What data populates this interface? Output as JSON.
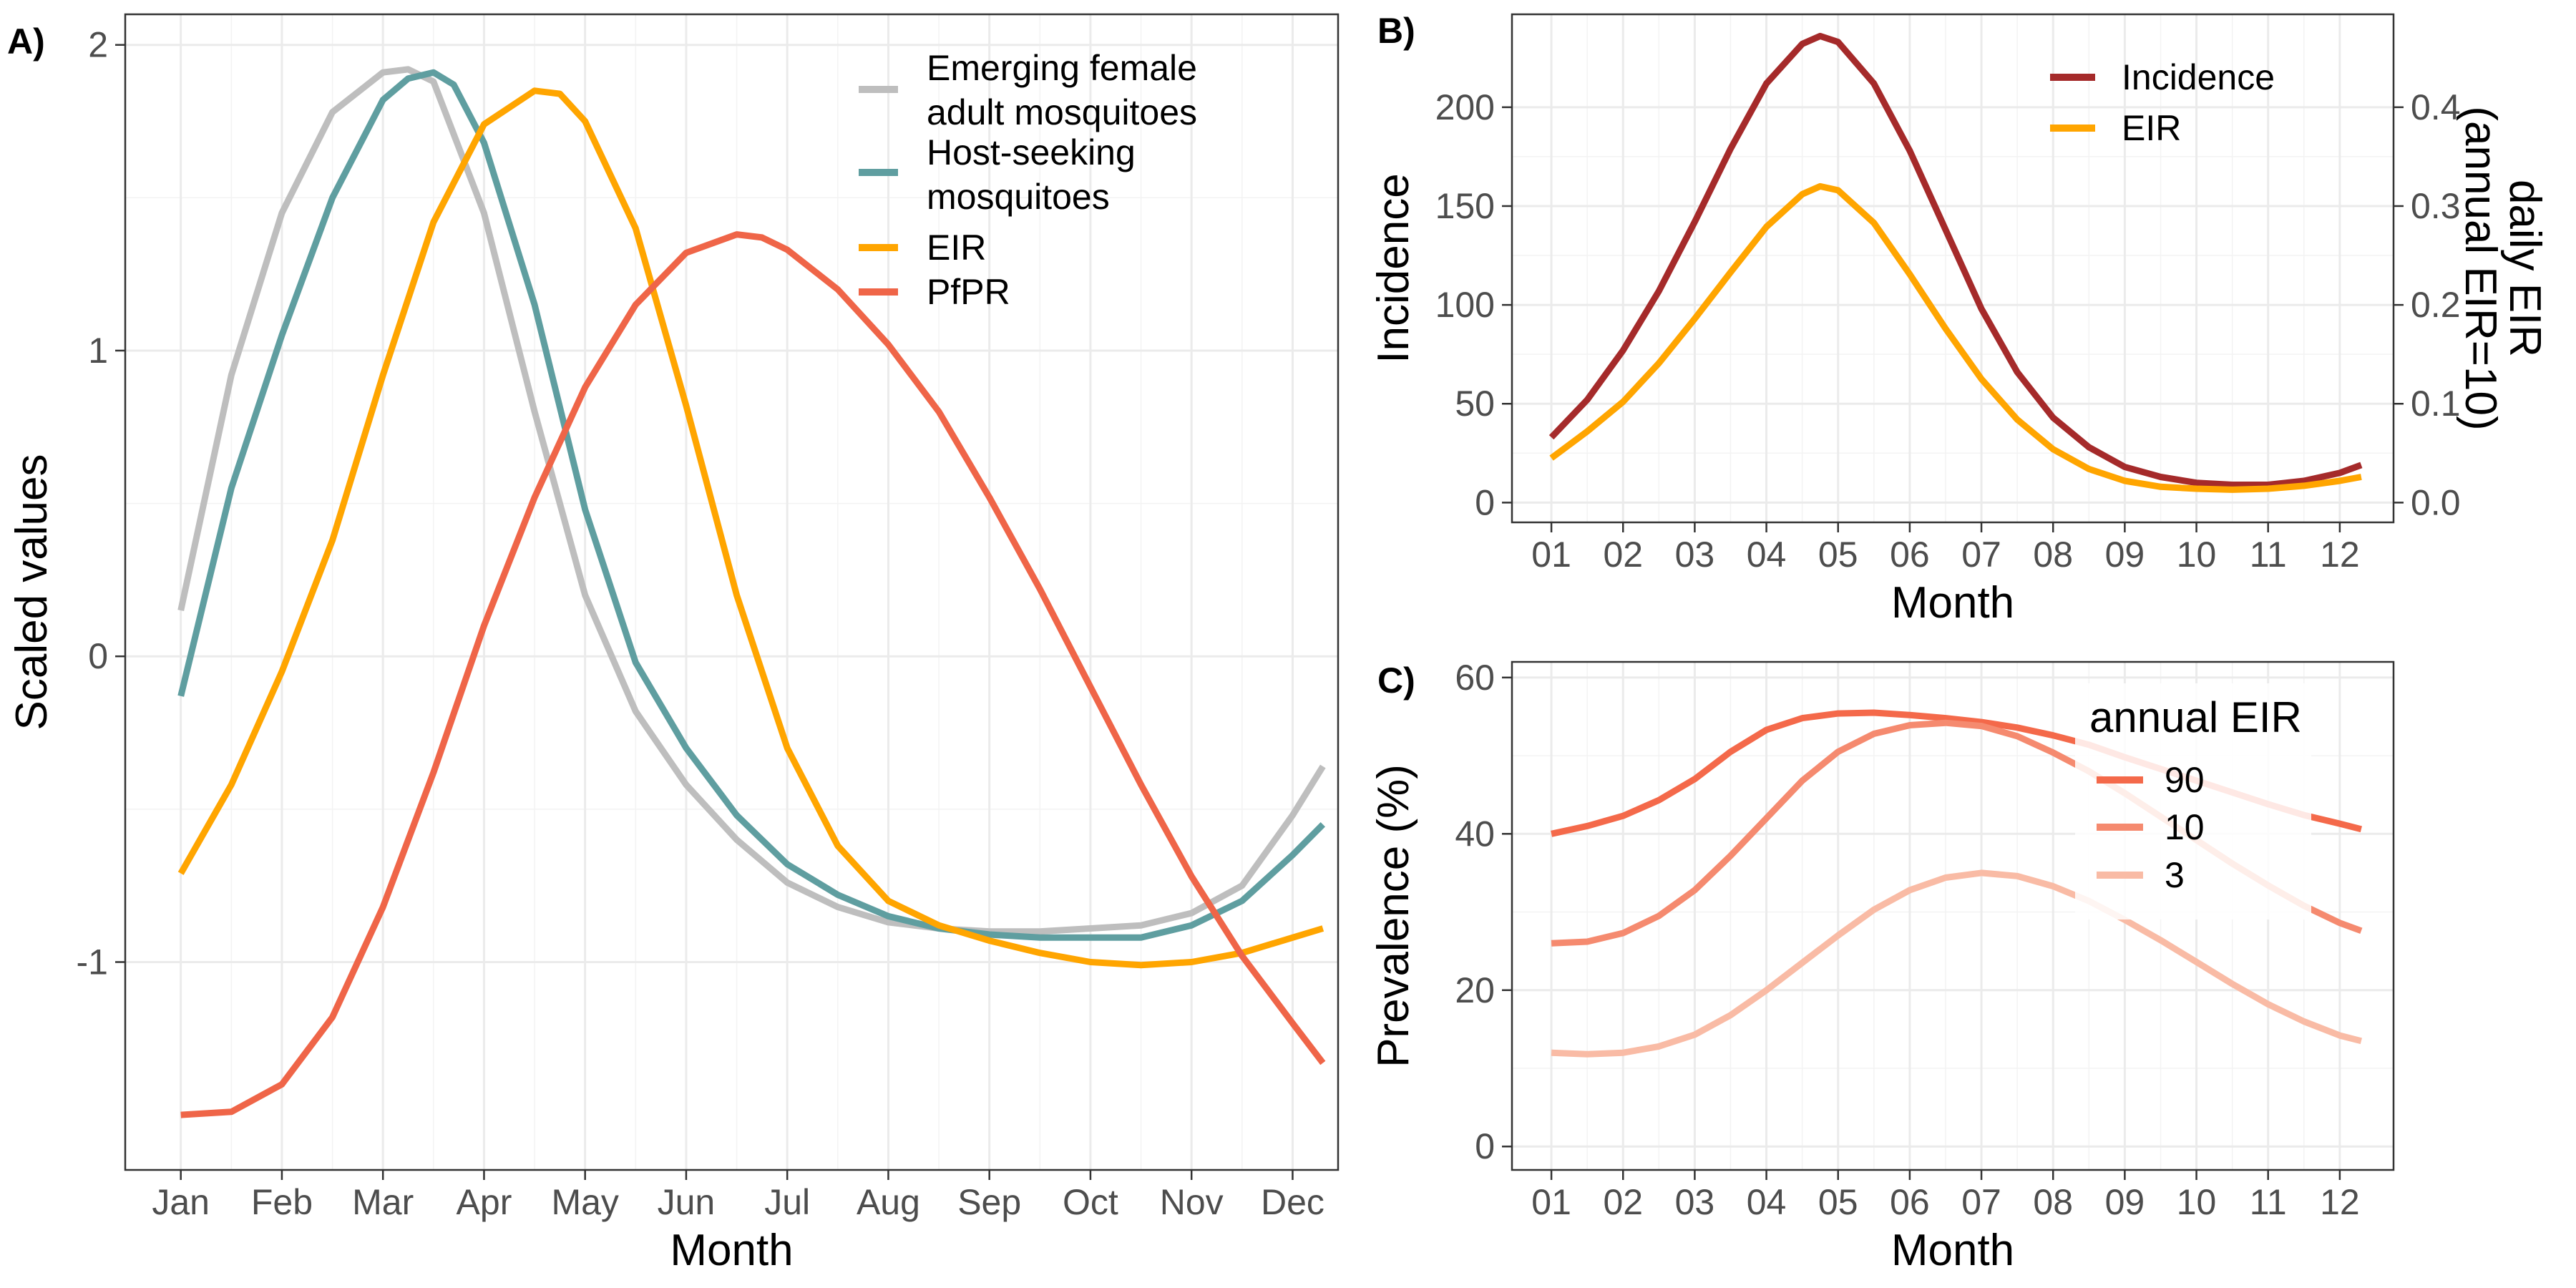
{
  "chart_data": [
    {
      "panel": "A)",
      "type": "line",
      "xlabel": "Month",
      "ylabel": "Scaled values",
      "x_ticks": [
        "Jan",
        "Feb",
        "Mar",
        "Apr",
        "May",
        "Jun",
        "Jul",
        "Aug",
        "Sep",
        "Oct",
        "Nov",
        "Dec"
      ],
      "y_ticks": [
        -1,
        0,
        1,
        2
      ],
      "ylim": [
        -1.68,
        2.1
      ],
      "xlim": [
        0.45,
        12.45
      ],
      "legend": "top-right",
      "series": [
        {
          "name": "Emerging female adult mosquitoes",
          "color": "#bebebe",
          "x": [
            1,
            1.5,
            2,
            2.5,
            3,
            3.25,
            3.5,
            4,
            4.5,
            5,
            5.5,
            6,
            6.5,
            7,
            7.5,
            8,
            8.5,
            9,
            9.5,
            10,
            10.5,
            11,
            11.5,
            12,
            12.3
          ],
          "y": [
            0.15,
            0.92,
            1.45,
            1.78,
            1.91,
            1.92,
            1.88,
            1.45,
            0.8,
            0.2,
            -0.18,
            -0.42,
            -0.6,
            -0.74,
            -0.82,
            -0.87,
            -0.89,
            -0.9,
            -0.9,
            -0.89,
            -0.88,
            -0.84,
            -0.75,
            -0.52,
            -0.36
          ]
        },
        {
          "name": "Host-seeking mosquitoes",
          "color": "#5f9ea0",
          "x": [
            1,
            1.5,
            2,
            2.5,
            3,
            3.25,
            3.5,
            3.7,
            4,
            4.5,
            5,
            5.5,
            6,
            6.5,
            7,
            7.5,
            8,
            8.5,
            9,
            9.5,
            10,
            10.5,
            11,
            11.5,
            12,
            12.3
          ],
          "y": [
            -0.13,
            0.55,
            1.05,
            1.5,
            1.82,
            1.89,
            1.91,
            1.87,
            1.68,
            1.15,
            0.48,
            -0.02,
            -0.3,
            -0.52,
            -0.68,
            -0.78,
            -0.85,
            -0.89,
            -0.91,
            -0.92,
            -0.92,
            -0.92,
            -0.88,
            -0.8,
            -0.65,
            -0.55
          ]
        },
        {
          "name": "EIR",
          "color": "#ffa500",
          "x": [
            1,
            1.5,
            2,
            2.5,
            3,
            3.5,
            4,
            4.5,
            4.75,
            5,
            5.5,
            6,
            6.5,
            7,
            7.5,
            8,
            8.5,
            9,
            9.5,
            10,
            10.5,
            11,
            11.5,
            12,
            12.3
          ],
          "y": [
            -0.71,
            -0.42,
            -0.05,
            0.38,
            0.92,
            1.42,
            1.74,
            1.85,
            1.84,
            1.75,
            1.4,
            0.82,
            0.2,
            -0.3,
            -0.62,
            -0.8,
            -0.88,
            -0.93,
            -0.97,
            -1.0,
            -1.01,
            -1.0,
            -0.97,
            -0.92,
            -0.89
          ]
        },
        {
          "name": "PfPR",
          "color": "#ef6548",
          "x": [
            1,
            1.5,
            2,
            2.5,
            3,
            3.5,
            4,
            4.5,
            5,
            5.5,
            6,
            6.5,
            6.75,
            7,
            7.5,
            8,
            8.5,
            9,
            9.5,
            10,
            10.5,
            11,
            11.5,
            12,
            12.3
          ],
          "y": [
            -1.5,
            -1.49,
            -1.4,
            -1.18,
            -0.82,
            -0.38,
            0.1,
            0.52,
            0.88,
            1.15,
            1.32,
            1.38,
            1.37,
            1.33,
            1.2,
            1.02,
            0.8,
            0.52,
            0.22,
            -0.1,
            -0.42,
            -0.72,
            -0.98,
            -1.2,
            -1.33
          ]
        }
      ]
    },
    {
      "panel": "B)",
      "type": "line",
      "xlabel": "Month",
      "ylabel": "Incidence",
      "ylabel_right": "daily EIR\n(annual EIR=10)",
      "x_ticks": [
        "01",
        "02",
        "03",
        "04",
        "05",
        "06",
        "07",
        "08",
        "09",
        "10",
        "11",
        "12"
      ],
      "y_ticks": [
        0,
        50,
        100,
        150,
        200
      ],
      "y_ticks_right": [
        "0.0",
        "0.1",
        "0.2",
        "0.3",
        "0.4"
      ],
      "ylim": [
        -10,
        247
      ],
      "right_axis_scale": 500,
      "legend": "top-right",
      "series": [
        {
          "name": "Incidence",
          "color": "#a52a2a",
          "x": [
            1,
            1.5,
            2,
            2.5,
            3,
            3.5,
            4,
            4.5,
            4.75,
            5,
            5.5,
            6,
            6.5,
            7,
            7.5,
            8,
            8.5,
            9,
            9.5,
            10,
            10.5,
            11,
            11.5,
            12,
            12.3
          ],
          "y": [
            33,
            52,
            77,
            107,
            142,
            179,
            212,
            232,
            236,
            233,
            212,
            178,
            138,
            98,
            66,
            43,
            28,
            18,
            13,
            10,
            9,
            9,
            11,
            15,
            19
          ]
        },
        {
          "name": "EIR",
          "color": "#ffa500",
          "x": [
            1,
            1.5,
            2,
            2.5,
            3,
            3.5,
            4,
            4.5,
            4.75,
            5,
            5.5,
            6,
            6.5,
            7,
            7.5,
            8,
            8.5,
            9,
            9.5,
            10,
            10.5,
            11,
            11.5,
            12,
            12.3
          ],
          "y": [
            0.045,
            0.072,
            0.102,
            0.141,
            0.186,
            0.233,
            0.279,
            0.312,
            0.32,
            0.316,
            0.283,
            0.231,
            0.176,
            0.125,
            0.084,
            0.054,
            0.034,
            0.022,
            0.016,
            0.014,
            0.013,
            0.014,
            0.017,
            0.022,
            0.026
          ]
        }
      ]
    },
    {
      "panel": "C)",
      "type": "line",
      "xlabel": "Month",
      "ylabel": "Prevalence (%)",
      "x_ticks": [
        "01",
        "02",
        "03",
        "04",
        "05",
        "06",
        "07",
        "08",
        "09",
        "10",
        "11",
        "12"
      ],
      "y_ticks": [
        0,
        20,
        40,
        60
      ],
      "ylim": [
        -3,
        62
      ],
      "legend_title": "annual EIR",
      "legend": "top-right",
      "series": [
        {
          "name": "90",
          "color": "#f4694a",
          "x": [
            1,
            1.5,
            2,
            2.5,
            3,
            3.5,
            4,
            4.5,
            5,
            5.5,
            6,
            6.5,
            7,
            7.5,
            8,
            8.5,
            9,
            9.5,
            10,
            10.5,
            11,
            11.5,
            12,
            12.3
          ],
          "y": [
            40,
            41,
            42.3,
            44.3,
            47,
            50.5,
            53.3,
            54.8,
            55.4,
            55.5,
            55.2,
            54.8,
            54.3,
            53.6,
            52.6,
            51.4,
            49.8,
            48.3,
            46.8,
            45.3,
            43.8,
            42.4,
            41.3,
            40.6
          ]
        },
        {
          "name": "10",
          "color": "#f58a6f",
          "x": [
            1,
            1.5,
            2,
            2.5,
            3,
            3.5,
            4,
            4.5,
            5,
            5.5,
            6,
            6.5,
            7,
            7.5,
            8,
            8.5,
            9,
            9.5,
            10,
            10.5,
            11,
            11.5,
            12,
            12.3
          ],
          "y": [
            26,
            26.2,
            27.3,
            29.5,
            32.8,
            37.2,
            42,
            46.8,
            50.5,
            52.8,
            53.9,
            54.2,
            53.8,
            52.5,
            50.4,
            48,
            45.2,
            42.2,
            39.2,
            36.2,
            33.4,
            30.8,
            28.6,
            27.6
          ]
        },
        {
          "name": "3",
          "color": "#f9bba5",
          "x": [
            1,
            1.5,
            2,
            2.5,
            3,
            3.5,
            4,
            4.5,
            5,
            5.5,
            6,
            6.5,
            7,
            7.5,
            8,
            8.5,
            9,
            9.5,
            10,
            10.5,
            11,
            11.5,
            12,
            12.3
          ],
          "y": [
            12,
            11.8,
            12,
            12.8,
            14.3,
            16.8,
            20,
            23.5,
            27,
            30.3,
            32.8,
            34.4,
            35,
            34.6,
            33.3,
            31.4,
            29,
            26.4,
            23.6,
            20.8,
            18.2,
            16,
            14.2,
            13.5
          ]
        }
      ]
    }
  ]
}
